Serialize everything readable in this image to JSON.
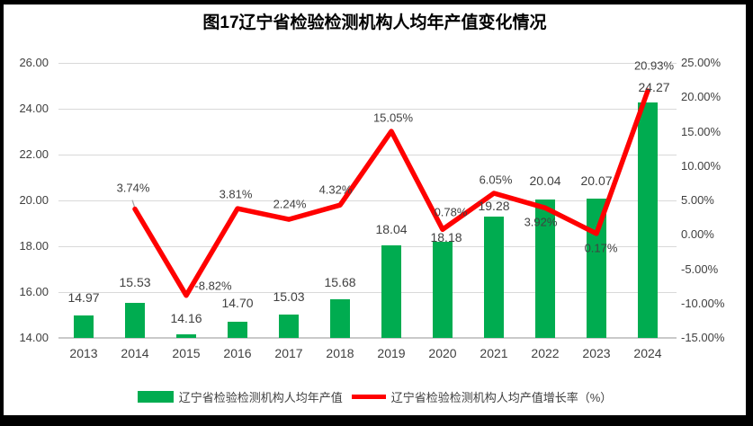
{
  "title": "图17辽宁省检验检测机构人均年产值变化情况",
  "colors": {
    "bar_green": "#00AC50",
    "line_red": "#FF0000",
    "gridline": "#D9D9D9",
    "baseline": "#C9C9C9",
    "axis_text": "#404040",
    "title_text": "#000000",
    "frame_black": "#000000",
    "background": "#FFFFFF",
    "leader_gray": "#A6A6A6"
  },
  "legend": {
    "position": "bottom",
    "items": [
      {
        "label": "辽宁省检验检测机构人均年产值",
        "swatch": "bar",
        "color": "#00AC50"
      },
      {
        "label": "辽宁省检验检测机构人均产值增长率（%）",
        "swatch": "line",
        "color": "#FF0000"
      }
    ]
  },
  "chart_data": {
    "type": "bar+line",
    "title": "图17辽宁省检验检测机构人均年产值变化情况",
    "categories": [
      "2013",
      "2014",
      "2015",
      "2016",
      "2017",
      "2018",
      "2019",
      "2020",
      "2021",
      "2022",
      "2023",
      "2024"
    ],
    "series": [
      {
        "name": "辽宁省检验检测机构人均年产值",
        "chart_type": "bar",
        "axis": "left",
        "color": "#00AC50",
        "values": [
          14.97,
          15.53,
          14.16,
          14.7,
          15.03,
          15.68,
          18.04,
          18.18,
          19.28,
          20.04,
          20.07,
          24.27
        ],
        "data_labels": [
          "14.97",
          "15.53",
          "14.16",
          "14.70",
          "15.03",
          "15.68",
          "18.04",
          "18.18",
          "19.28",
          "20.04",
          "20.07",
          "24.27"
        ],
        "label_offsets": [
          {
            "dx": 0,
            "dy": -20
          },
          {
            "dx": 0,
            "dy": -23
          },
          {
            "dx": 0,
            "dy": -18
          },
          {
            "dx": 0,
            "dy": -21
          },
          {
            "dx": 0,
            "dy": -20
          },
          {
            "dx": 0,
            "dy": -19
          },
          {
            "dx": 0,
            "dy": -18
          },
          {
            "dx": 4,
            "dy": -5
          },
          {
            "dx": 0,
            "dy": -12
          },
          {
            "dx": 0,
            "dy": -21
          },
          {
            "dx": 0,
            "dy": -20
          },
          {
            "dx": 7,
            "dy": -17
          }
        ]
      },
      {
        "name": "辽宁省检验检测机构人均产值增长率（%）",
        "chart_type": "line",
        "axis": "right",
        "color": "#FF0000",
        "values": [
          null,
          3.74,
          -8.82,
          3.81,
          2.24,
          4.32,
          15.05,
          0.78,
          6.05,
          3.92,
          0.17,
          20.93
        ],
        "data_labels": [
          null,
          "3.74%",
          "-8.82%",
          "3.81%",
          "2.24%",
          "4.32%",
          "15.05%",
          "0.78%",
          "6.05%",
          "3.92%",
          "0.17%",
          "20.93%"
        ],
        "label_offsets": [
          null,
          {
            "dx": -2,
            "dy": -24,
            "leader": true
          },
          {
            "dx": 30,
            "dy": -11
          },
          {
            "dx": -2,
            "dy": -16
          },
          {
            "dx": 1,
            "dy": -17
          },
          {
            "dx": -5,
            "dy": -17
          },
          {
            "dx": 2,
            "dy": -15
          },
          {
            "dx": 9,
            "dy": -19
          },
          {
            "dx": 2,
            "dy": -15
          },
          {
            "dx": -5,
            "dy": 16
          },
          {
            "dx": 5,
            "dy": 16
          },
          {
            "dx": 7,
            "dy": -28
          }
        ]
      }
    ],
    "left_axis": {
      "min": 14,
      "max": 26,
      "step": 2,
      "tick_labels": [
        "26.00",
        "24.00",
        "22.00",
        "20.00",
        "18.00",
        "16.00",
        "14.00"
      ]
    },
    "right_axis": {
      "min": -15,
      "max": 25,
      "step": 5,
      "tick_labels": [
        "25.00%",
        "20.00%",
        "15.00%",
        "10.00%",
        "5.00%",
        "0.00%",
        "-5.00%",
        "-10.00%",
        "-15.00%"
      ]
    },
    "grid": true,
    "legend_position": "bottom"
  }
}
